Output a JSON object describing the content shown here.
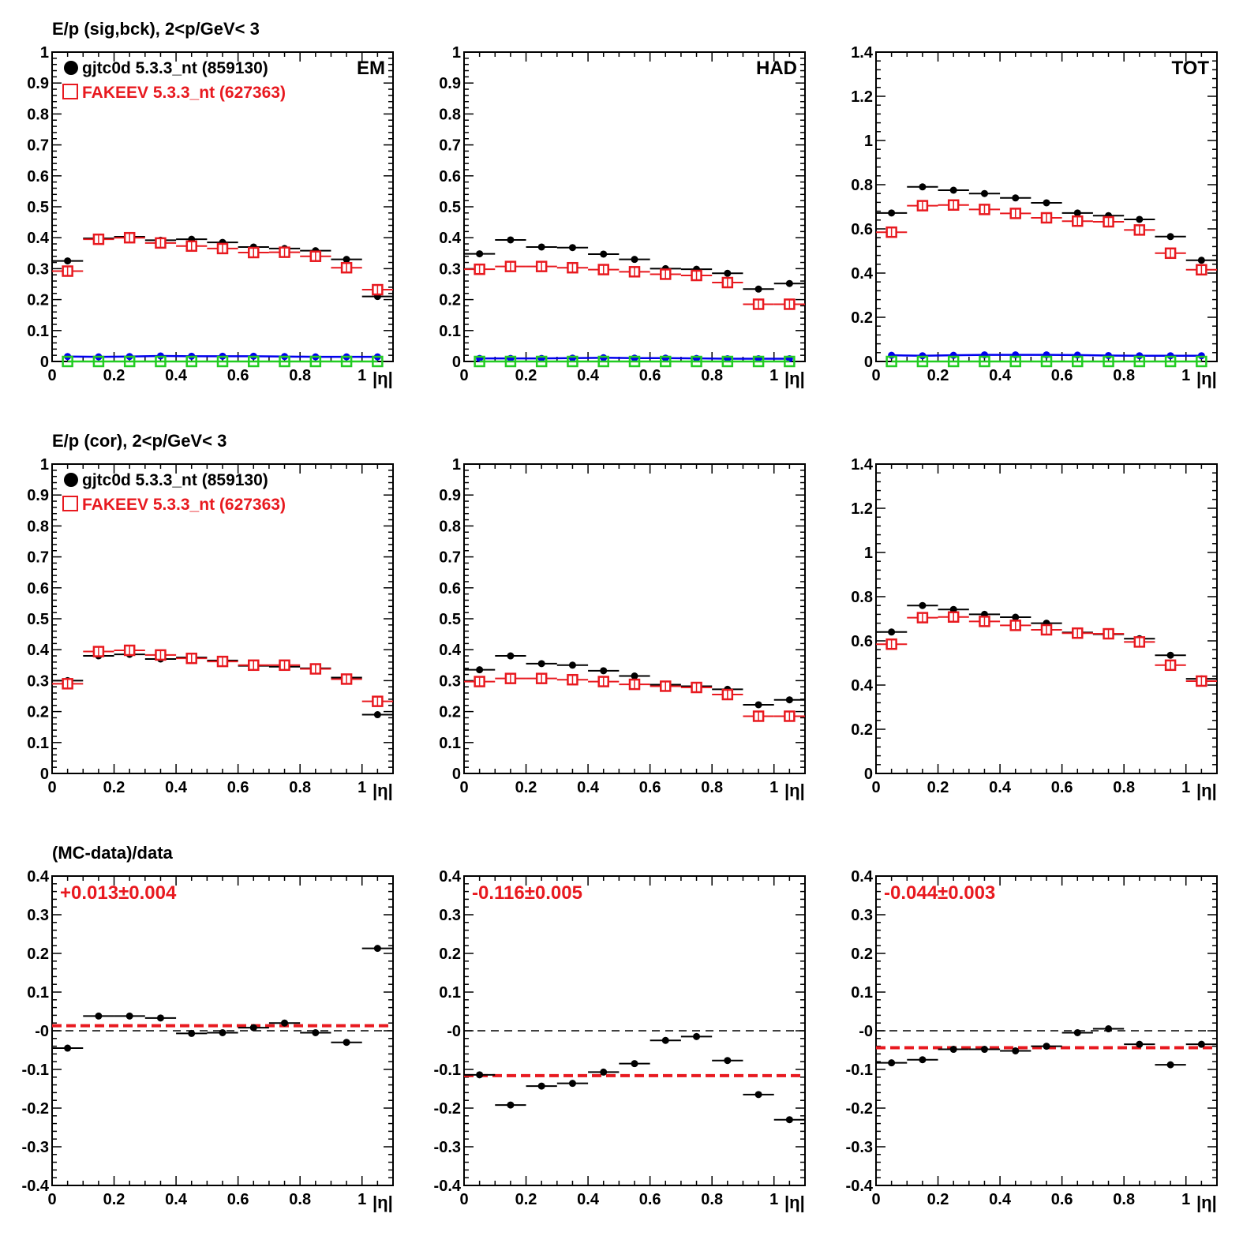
{
  "figure": {
    "row_titles": [
      "E/p (sig,bck),  2<p/GeV< 3",
      "E/p (cor),  2<p/GeV< 3",
      "(MC-data)/data"
    ],
    "legend": {
      "data_label": "gjtc0d 5.3.3_nt (859130)",
      "mc_label": "FAKEEV 5.3.3_nt (627363)"
    },
    "xlabel": "|η|",
    "colors": {
      "data": "#000000",
      "mc": "#e8191f",
      "bck_data": "#0000ee",
      "bck_mc": "#22cc22",
      "ratio_fit": "#e8191f"
    }
  },
  "chart_data": [
    {
      "id": "sig_em",
      "type": "scatter",
      "panel_label": "EM",
      "legend": true,
      "ylim": [
        0,
        1
      ],
      "yticks": [
        "0",
        "0.1",
        "0.2",
        "0.3",
        "0.4",
        "0.5",
        "0.6",
        "0.7",
        "0.8",
        "0.9",
        "1"
      ],
      "xticks": [
        "0",
        "0.2",
        "0.4",
        "0.6",
        "0.8",
        "1"
      ],
      "x": [
        0.05,
        0.15,
        0.25,
        0.35,
        0.45,
        0.55,
        0.65,
        0.75,
        0.85,
        0.95,
        1.05
      ],
      "series": [
        {
          "role": "data",
          "values": [
            0.325,
            0.398,
            0.403,
            0.392,
            0.395,
            0.385,
            0.37,
            0.365,
            0.358,
            0.33,
            0.21
          ]
        },
        {
          "role": "mc",
          "values": [
            0.292,
            0.395,
            0.4,
            0.383,
            0.373,
            0.365,
            0.352,
            0.353,
            0.34,
            0.303,
            0.232
          ]
        },
        {
          "role": "bck_data",
          "values": [
            0.016,
            0.015,
            0.016,
            0.018,
            0.017,
            0.017,
            0.017,
            0.016,
            0.015,
            0.015,
            0.015
          ]
        },
        {
          "role": "bck_mc",
          "values": [
            0,
            0,
            0,
            0,
            0,
            0,
            0,
            0,
            0,
            0,
            0
          ]
        }
      ]
    },
    {
      "id": "sig_had",
      "type": "scatter",
      "panel_label": "HAD",
      "legend": false,
      "ylim": [
        0,
        1
      ],
      "yticks": [
        "0",
        "0.1",
        "0.2",
        "0.3",
        "0.4",
        "0.5",
        "0.6",
        "0.7",
        "0.8",
        "0.9",
        "1"
      ],
      "xticks": [
        "0",
        "0.2",
        "0.4",
        "0.6",
        "0.8",
        "1"
      ],
      "x": [
        0.05,
        0.15,
        0.25,
        0.35,
        0.45,
        0.55,
        0.65,
        0.75,
        0.85,
        0.95,
        1.05
      ],
      "series": [
        {
          "role": "data",
          "values": [
            0.348,
            0.393,
            0.37,
            0.368,
            0.347,
            0.33,
            0.3,
            0.298,
            0.285,
            0.234,
            0.252
          ]
        },
        {
          "role": "mc",
          "values": [
            0.298,
            0.307,
            0.307,
            0.303,
            0.297,
            0.29,
            0.282,
            0.278,
            0.255,
            0.185,
            0.185
          ]
        },
        {
          "role": "bck_data",
          "values": [
            0.01,
            0.01,
            0.01,
            0.011,
            0.012,
            0.011,
            0.011,
            0.01,
            0.009,
            0.009,
            0.009
          ]
        },
        {
          "role": "bck_mc",
          "values": [
            0,
            0,
            0,
            0,
            0,
            0,
            0,
            0,
            0,
            0,
            0
          ]
        }
      ]
    },
    {
      "id": "sig_tot",
      "type": "scatter",
      "panel_label": "TOT",
      "legend": false,
      "ylim": [
        0,
        1.4
      ],
      "yticks": [
        "0",
        "0.2",
        "0.4",
        "0.6",
        "0.8",
        "1",
        "1.2",
        "1.4"
      ],
      "xticks": [
        "0",
        "0.2",
        "0.4",
        "0.6",
        "0.8",
        "1"
      ],
      "x": [
        0.05,
        0.15,
        0.25,
        0.35,
        0.45,
        0.55,
        0.65,
        0.75,
        0.85,
        0.95,
        1.05
      ],
      "series": [
        {
          "role": "data",
          "values": [
            0.672,
            0.79,
            0.775,
            0.76,
            0.74,
            0.718,
            0.672,
            0.66,
            0.643,
            0.565,
            0.458
          ]
        },
        {
          "role": "mc",
          "values": [
            0.585,
            0.705,
            0.708,
            0.688,
            0.67,
            0.65,
            0.635,
            0.632,
            0.595,
            0.49,
            0.415
          ]
        },
        {
          "role": "bck_data",
          "values": [
            0.028,
            0.026,
            0.028,
            0.03,
            0.03,
            0.03,
            0.029,
            0.027,
            0.026,
            0.026,
            0.026
          ]
        },
        {
          "role": "bck_mc",
          "values": [
            0,
            0,
            0,
            0,
            0,
            0,
            0,
            0,
            0,
            0,
            0
          ]
        }
      ]
    },
    {
      "id": "cor_em",
      "type": "scatter",
      "panel_label": "",
      "legend": true,
      "ylim": [
        0,
        1
      ],
      "yticks": [
        "0",
        "0.1",
        "0.2",
        "0.3",
        "0.4",
        "0.5",
        "0.6",
        "0.7",
        "0.8",
        "0.9",
        "1"
      ],
      "xticks": [
        "0",
        "0.2",
        "0.4",
        "0.6",
        "0.8",
        "1"
      ],
      "x": [
        0.05,
        0.15,
        0.25,
        0.35,
        0.45,
        0.55,
        0.65,
        0.75,
        0.85,
        0.95,
        1.05
      ],
      "series": [
        {
          "role": "data",
          "values": [
            0.3,
            0.38,
            0.385,
            0.37,
            0.375,
            0.365,
            0.348,
            0.345,
            0.34,
            0.31,
            0.19
          ]
        },
        {
          "role": "mc",
          "values": [
            0.29,
            0.394,
            0.398,
            0.383,
            0.372,
            0.362,
            0.35,
            0.35,
            0.338,
            0.305,
            0.233
          ]
        }
      ]
    },
    {
      "id": "cor_had",
      "type": "scatter",
      "panel_label": "",
      "legend": false,
      "ylim": [
        0,
        1
      ],
      "yticks": [
        "0",
        "0.1",
        "0.2",
        "0.3",
        "0.4",
        "0.5",
        "0.6",
        "0.7",
        "0.8",
        "0.9",
        "1"
      ],
      "xticks": [
        "0",
        "0.2",
        "0.4",
        "0.6",
        "0.8",
        "1"
      ],
      "x": [
        0.05,
        0.15,
        0.25,
        0.35,
        0.45,
        0.55,
        0.65,
        0.75,
        0.85,
        0.95,
        1.05
      ],
      "series": [
        {
          "role": "data",
          "values": [
            0.335,
            0.38,
            0.355,
            0.35,
            0.332,
            0.315,
            0.287,
            0.282,
            0.272,
            0.222,
            0.238
          ]
        },
        {
          "role": "mc",
          "values": [
            0.297,
            0.307,
            0.307,
            0.303,
            0.297,
            0.288,
            0.282,
            0.278,
            0.255,
            0.185,
            0.185
          ]
        }
      ]
    },
    {
      "id": "cor_tot",
      "type": "scatter",
      "panel_label": "",
      "legend": false,
      "ylim": [
        0,
        1.4
      ],
      "yticks": [
        "0",
        "0.2",
        "0.4",
        "0.6",
        "0.8",
        "1",
        "1.2",
        "1.4"
      ],
      "xticks": [
        "0",
        "0.2",
        "0.4",
        "0.6",
        "0.8",
        "1"
      ],
      "x": [
        0.05,
        0.15,
        0.25,
        0.35,
        0.45,
        0.55,
        0.65,
        0.75,
        0.85,
        0.95,
        1.05
      ],
      "series": [
        {
          "role": "data",
          "values": [
            0.64,
            0.76,
            0.742,
            0.72,
            0.707,
            0.68,
            0.638,
            0.63,
            0.61,
            0.535,
            0.428
          ]
        },
        {
          "role": "mc",
          "values": [
            0.585,
            0.705,
            0.708,
            0.688,
            0.67,
            0.65,
            0.635,
            0.632,
            0.595,
            0.49,
            0.418
          ]
        }
      ]
    },
    {
      "id": "ratio_em",
      "type": "scatter",
      "panel_label": "",
      "legend": false,
      "ylim": [
        -0.4,
        0.4
      ],
      "yticks": [
        "-0.4",
        "-0.3",
        "-0.2",
        "-0.1",
        "-0",
        "0.1",
        "0.2",
        "0.3",
        "0.4"
      ],
      "xticks": [
        "0",
        "0.2",
        "0.4",
        "0.6",
        "0.8",
        "1"
      ],
      "fit_text": "+0.013±0.004",
      "fit_value": 0.013,
      "x": [
        0.05,
        0.15,
        0.25,
        0.35,
        0.45,
        0.55,
        0.65,
        0.75,
        0.85,
        0.95,
        1.05
      ],
      "series": [
        {
          "role": "data",
          "values": [
            -0.045,
            0.038,
            0.038,
            0.033,
            -0.007,
            -0.005,
            0.008,
            0.02,
            -0.005,
            -0.03,
            0.213
          ]
        }
      ]
    },
    {
      "id": "ratio_had",
      "type": "scatter",
      "panel_label": "",
      "legend": false,
      "ylim": [
        -0.4,
        0.4
      ],
      "yticks": [
        "-0.4",
        "-0.3",
        "-0.2",
        "-0.1",
        "-0",
        "0.1",
        "0.2",
        "0.3",
        "0.4"
      ],
      "xticks": [
        "0",
        "0.2",
        "0.4",
        "0.6",
        "0.8",
        "1"
      ],
      "fit_text": "-0.116±0.005",
      "fit_value": -0.116,
      "x": [
        0.05,
        0.15,
        0.25,
        0.35,
        0.45,
        0.55,
        0.65,
        0.75,
        0.85,
        0.95,
        1.05
      ],
      "series": [
        {
          "role": "data",
          "values": [
            -0.114,
            -0.192,
            -0.143,
            -0.136,
            -0.107,
            -0.085,
            -0.025,
            -0.015,
            -0.077,
            -0.165,
            -0.23
          ]
        }
      ]
    },
    {
      "id": "ratio_tot",
      "type": "scatter",
      "panel_label": "",
      "legend": false,
      "ylim": [
        -0.4,
        0.4
      ],
      "yticks": [
        "-0.4",
        "-0.3",
        "-0.2",
        "-0.1",
        "-0",
        "0.1",
        "0.2",
        "0.3",
        "0.4"
      ],
      "xticks": [
        "0",
        "0.2",
        "0.4",
        "0.6",
        "0.8",
        "1"
      ],
      "fit_text": "-0.044±0.003",
      "fit_value": -0.044,
      "x": [
        0.05,
        0.15,
        0.25,
        0.35,
        0.45,
        0.55,
        0.65,
        0.75,
        0.85,
        0.95,
        1.05
      ],
      "series": [
        {
          "role": "data",
          "values": [
            -0.083,
            -0.075,
            -0.048,
            -0.048,
            -0.052,
            -0.04,
            -0.005,
            0.005,
            -0.035,
            -0.088,
            -0.035
          ]
        }
      ]
    }
  ]
}
